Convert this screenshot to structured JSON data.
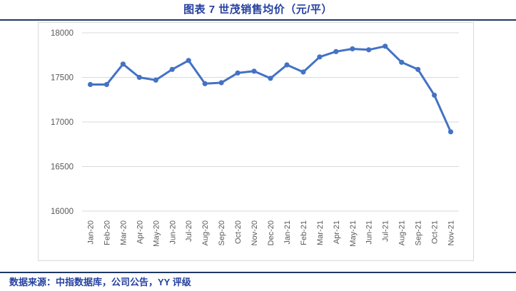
{
  "header": {
    "title": "图表 7  世茂销售均价（元/平）"
  },
  "footer": {
    "source": "数据来源：中指数据库，公司公告，YY 评级"
  },
  "colors": {
    "accent_text": "#2540a0",
    "rule": "#1f3864",
    "series_line": "#4472c4",
    "grid": "#d9d9d9",
    "axis_text": "#595959",
    "plot_background": "#ffffff"
  },
  "chart_data": {
    "type": "line",
    "title": "图表 7  世茂销售均价（元/平）",
    "xlabel": "",
    "ylabel": "",
    "ylim": [
      16000,
      18000
    ],
    "yticks": [
      16000,
      16500,
      17000,
      17500,
      18000
    ],
    "grid": "horizontal",
    "legend_position": "none",
    "marker": "circle",
    "categories": [
      "Jan-20",
      "Feb-20",
      "Mar-20",
      "Apr-20",
      "May-20",
      "Jun-20",
      "Jul-20",
      "Aug-20",
      "Sep-20",
      "Oct-20",
      "Nov-20",
      "Dec-20",
      "Jan-21",
      "Feb-21",
      "Mar-21",
      "Apr-21",
      "May-21",
      "Jun-21",
      "Jul-21",
      "Aug-21",
      "Sep-21",
      "Oct-21",
      "Nov-21"
    ],
    "series": [
      {
        "name": "世茂销售均价",
        "values": [
          17420,
          17420,
          17650,
          17500,
          17470,
          17590,
          17690,
          17430,
          17440,
          17550,
          17570,
          17490,
          17640,
          17560,
          17730,
          17790,
          17820,
          17810,
          17850,
          17670,
          17590,
          17300,
          16890
        ]
      }
    ]
  }
}
